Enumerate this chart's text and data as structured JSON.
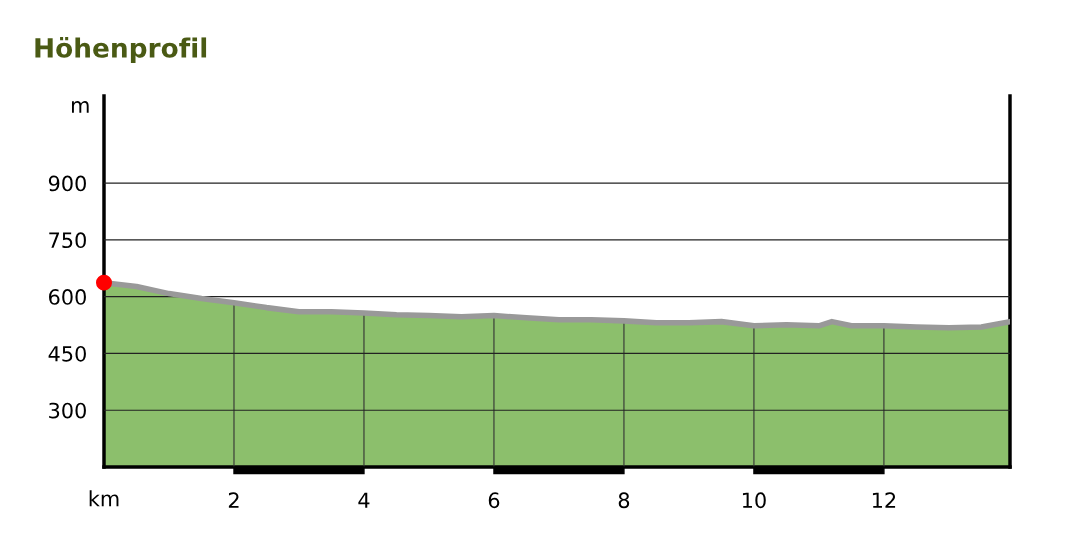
{
  "chart_data": {
    "type": "area",
    "title": "Höhenprofil",
    "xlabel": "km",
    "ylabel": "m",
    "x": [
      0,
      0.5,
      1,
      1.5,
      2,
      2.5,
      3,
      3.5,
      4,
      4.5,
      5,
      5.5,
      6,
      6.5,
      7,
      7.5,
      8,
      8.5,
      9,
      9.5,
      10,
      10.5,
      11,
      11.2,
      11.5,
      12,
      12.5,
      13,
      13.5,
      13.94
    ],
    "series": [
      {
        "color": "#999999",
        "values": [
          637,
          627,
          608,
          595,
          584,
          571,
          560,
          560,
          557,
          552,
          550,
          547,
          550,
          544,
          539,
          539,
          536,
          531,
          531,
          534,
          523,
          526,
          523,
          534,
          523,
          523,
          520,
          518,
          520,
          534
        ]
      },
      {
        "type": "scatter",
        "color": "#ff0000",
        "x": [
          0
        ],
        "values": [
          637
        ]
      }
    ],
    "xlim": [
      0,
      13.94
    ],
    "ylim": [
      150,
      1130
    ],
    "xticks": [
      2,
      4,
      6,
      8,
      10,
      12
    ],
    "yticks": [
      300,
      450,
      600,
      750,
      900
    ],
    "grid": true
  }
}
